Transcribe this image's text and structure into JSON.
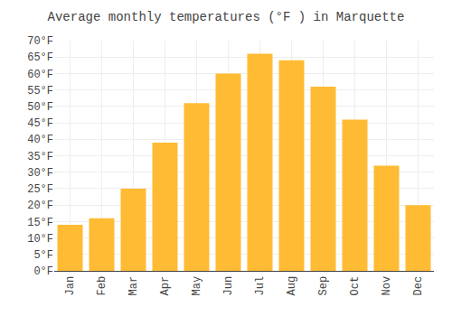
{
  "chart_data": {
    "type": "bar",
    "title": "Average monthly temperatures (°F ) in Marquette",
    "categories": [
      "Jan",
      "Feb",
      "Mar",
      "Apr",
      "May",
      "Jun",
      "Jul",
      "Aug",
      "Sep",
      "Oct",
      "Nov",
      "Dec"
    ],
    "values": [
      14,
      16,
      25,
      39,
      51,
      60,
      66,
      64,
      56,
      46,
      32,
      20
    ],
    "color": "#FFBB33",
    "ylim": [
      0,
      70
    ],
    "yticks": [
      {
        "value": 0,
        "label": "0°F"
      },
      {
        "value": 5,
        "label": "5°F"
      },
      {
        "value": 10,
        "label": "10°F"
      },
      {
        "value": 15,
        "label": "15°F"
      },
      {
        "value": 20,
        "label": "20°F"
      },
      {
        "value": 25,
        "label": "25°F"
      },
      {
        "value": 30,
        "label": "30°F"
      },
      {
        "value": 35,
        "label": "35°F"
      },
      {
        "value": 40,
        "label": "40°F"
      },
      {
        "value": 45,
        "label": "45°F"
      },
      {
        "value": 50,
        "label": "50°F"
      },
      {
        "value": 55,
        "label": "55°F"
      },
      {
        "value": 60,
        "label": "60°F"
      },
      {
        "value": 65,
        "label": "65°F"
      },
      {
        "value": 70,
        "label": "70°F"
      }
    ],
    "grid": true
  }
}
